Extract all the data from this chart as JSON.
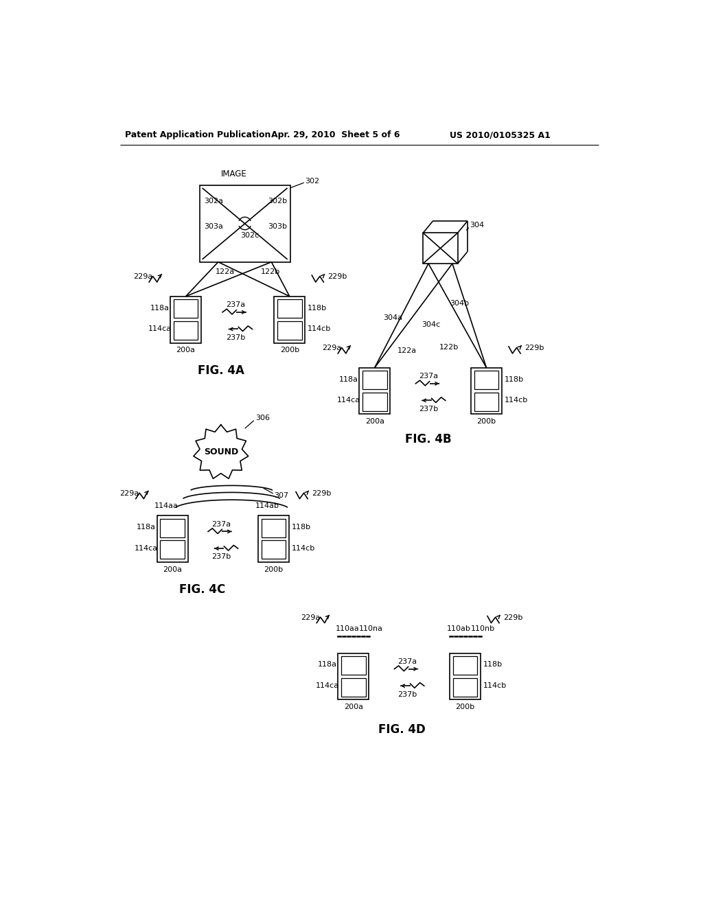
{
  "bg_color": "#ffffff",
  "header_left": "Patent Application Publication",
  "header_center": "Apr. 29, 2010  Sheet 5 of 6",
  "header_right": "US 2010/0105325 A1"
}
